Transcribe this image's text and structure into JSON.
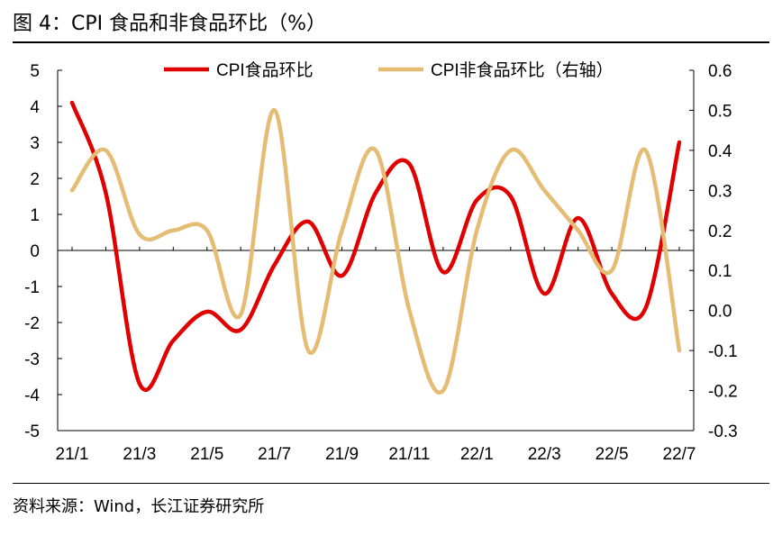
{
  "figure": {
    "title": "图 4：CPI 食品和非食品环比（%）",
    "source": "资料来源：Wind，长江证券研究所"
  },
  "chart_data": {
    "type": "line",
    "title": "图 4：CPI 食品和非食品环比（%）",
    "x": [
      "21/1",
      "21/2",
      "21/3",
      "21/4",
      "21/5",
      "21/6",
      "21/7",
      "21/8",
      "21/9",
      "21/10",
      "21/11",
      "21/12",
      "22/1",
      "22/2",
      "22/3",
      "22/4",
      "22/5",
      "22/6",
      "22/7"
    ],
    "xtick_labels": [
      "21/1",
      "21/3",
      "21/5",
      "21/7",
      "21/9",
      "21/11",
      "22/1",
      "22/3",
      "22/5",
      "22/7"
    ],
    "y_left": {
      "ylim": [
        -5,
        5
      ],
      "ticks": [
        "5",
        "4",
        "3",
        "2",
        "1",
        "0",
        "-1",
        "-2",
        "-3",
        "-4",
        "-5"
      ]
    },
    "y_right": {
      "ylim": [
        -0.3,
        0.6
      ],
      "ticks": [
        "0.6",
        "0.5",
        "0.4",
        "0.3",
        "0.2",
        "0.1",
        "0.0",
        "-0.1",
        "-0.2",
        "-0.3"
      ]
    },
    "series": [
      {
        "name": "CPI食品环比",
        "axis": "left",
        "color": "#e00000",
        "values": [
          4.1,
          1.6,
          -3.7,
          -2.5,
          -1.7,
          -2.2,
          -0.4,
          0.8,
          -0.7,
          1.6,
          2.4,
          -0.6,
          1.4,
          1.5,
          -1.2,
          0.9,
          -1.2,
          -1.6,
          3.0
        ]
      },
      {
        "name": "CPI非食品环比（右轴）",
        "axis": "right",
        "color": "#e4bc73",
        "values": [
          0.3,
          0.4,
          0.19,
          0.2,
          0.2,
          -0.01,
          0.5,
          -0.1,
          0.2,
          0.4,
          0.0,
          -0.2,
          0.2,
          0.4,
          0.3,
          0.2,
          0.1,
          0.4,
          -0.1
        ]
      }
    ],
    "legend": [
      {
        "label": "CPI食品环比",
        "color": "#e00000"
      },
      {
        "label": "CPI非食品环比（右轴）",
        "color": "#e4bc73"
      }
    ],
    "legend_position": "top",
    "grid": false
  }
}
